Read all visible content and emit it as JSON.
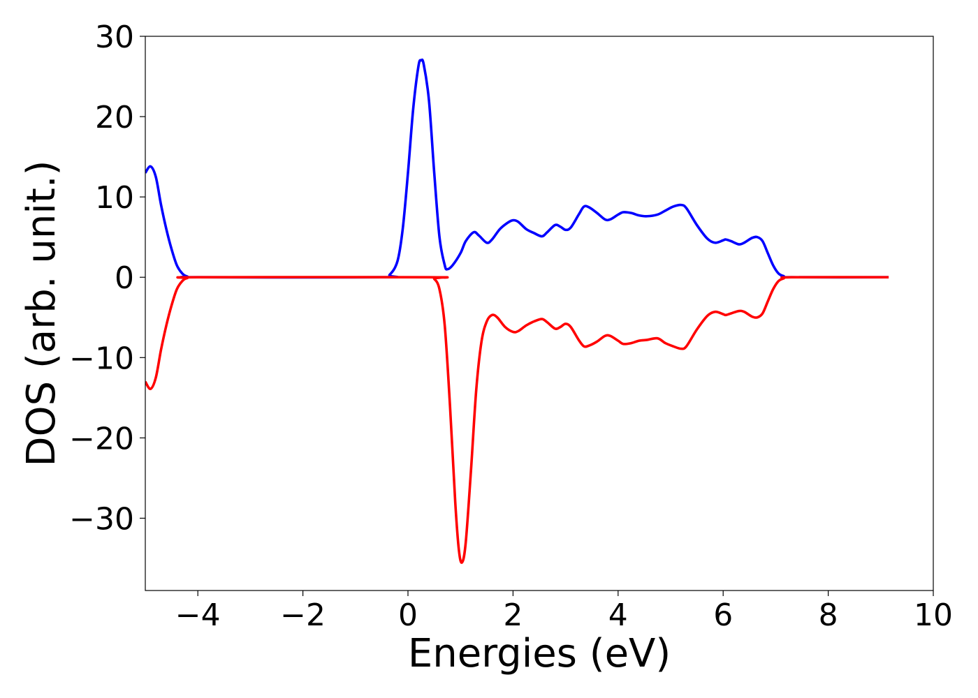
{
  "chart_data": {
    "type": "line",
    "xlabel": "Energies (eV)",
    "ylabel": "DOS (arb. unit.)",
    "xlim": [
      -5,
      10
    ],
    "ylim": [
      -39,
      30
    ],
    "xticks": [
      -4,
      -2,
      0,
      2,
      4,
      6,
      8,
      10
    ],
    "yticks": [
      -30,
      -20,
      -10,
      0,
      10,
      20,
      30
    ],
    "xtick_labels": [
      "−4",
      "−2",
      "0",
      "2",
      "4",
      "6",
      "8",
      "10"
    ],
    "ytick_labels": [
      "−30",
      "−20",
      "−10",
      "0",
      "10",
      "20",
      "30"
    ],
    "grid": false,
    "legend": "none",
    "series": [
      {
        "color": "#0000ff",
        "points": [
          [
            -5.0,
            13.0
          ],
          [
            -4.9,
            13.8
          ],
          [
            -4.8,
            12.5
          ],
          [
            -4.7,
            9.0
          ],
          [
            -4.6,
            6.0
          ],
          [
            -4.5,
            3.5
          ],
          [
            -4.4,
            1.5
          ],
          [
            -4.3,
            0.5
          ],
          [
            -4.2,
            0.1
          ],
          [
            -4.0,
            0.0
          ],
          [
            -0.5,
            0.0
          ],
          [
            -0.35,
            0.3
          ],
          [
            -0.2,
            2.0
          ],
          [
            -0.1,
            6.0
          ],
          [
            0.0,
            13.0
          ],
          [
            0.1,
            21.0
          ],
          [
            0.2,
            26.3
          ],
          [
            0.25,
            27.0
          ],
          [
            0.3,
            26.5
          ],
          [
            0.4,
            22.0
          ],
          [
            0.5,
            13.0
          ],
          [
            0.6,
            5.0
          ],
          [
            0.7,
            1.5
          ],
          [
            0.75,
            1.0
          ],
          [
            0.85,
            1.5
          ],
          [
            1.0,
            3.0
          ],
          [
            1.1,
            4.5
          ],
          [
            1.25,
            5.6
          ],
          [
            1.35,
            5.2
          ],
          [
            1.5,
            4.3
          ],
          [
            1.6,
            4.7
          ],
          [
            1.75,
            6.0
          ],
          [
            1.9,
            6.8
          ],
          [
            2.0,
            7.1
          ],
          [
            2.1,
            6.9
          ],
          [
            2.25,
            6.0
          ],
          [
            2.4,
            5.5
          ],
          [
            2.55,
            5.1
          ],
          [
            2.65,
            5.6
          ],
          [
            2.8,
            6.5
          ],
          [
            2.9,
            6.3
          ],
          [
            3.0,
            5.9
          ],
          [
            3.1,
            6.2
          ],
          [
            3.25,
            7.8
          ],
          [
            3.35,
            8.8
          ],
          [
            3.45,
            8.7
          ],
          [
            3.6,
            8.0
          ],
          [
            3.75,
            7.2
          ],
          [
            3.85,
            7.2
          ],
          [
            4.0,
            7.8
          ],
          [
            4.1,
            8.1
          ],
          [
            4.25,
            8.0
          ],
          [
            4.4,
            7.7
          ],
          [
            4.55,
            7.6
          ],
          [
            4.75,
            7.8
          ],
          [
            4.9,
            8.3
          ],
          [
            5.05,
            8.8
          ],
          [
            5.2,
            9.0
          ],
          [
            5.3,
            8.6
          ],
          [
            5.5,
            6.5
          ],
          [
            5.7,
            4.8
          ],
          [
            5.85,
            4.3
          ],
          [
            6.0,
            4.6
          ],
          [
            6.05,
            4.7
          ],
          [
            6.15,
            4.5
          ],
          [
            6.3,
            4.1
          ],
          [
            6.4,
            4.3
          ],
          [
            6.55,
            4.9
          ],
          [
            6.65,
            5.0
          ],
          [
            6.75,
            4.5
          ],
          [
            6.85,
            3.0
          ],
          [
            6.95,
            1.5
          ],
          [
            7.05,
            0.5
          ],
          [
            7.15,
            0.15
          ],
          [
            7.3,
            0.0
          ],
          [
            9.15,
            0.0
          ]
        ]
      },
      {
        "color": "#ff0000",
        "points": [
          [
            -5.0,
            -13.0
          ],
          [
            -4.9,
            -13.9
          ],
          [
            -4.8,
            -12.5
          ],
          [
            -4.7,
            -9.0
          ],
          [
            -4.6,
            -6.0
          ],
          [
            -4.5,
            -3.5
          ],
          [
            -4.4,
            -1.5
          ],
          [
            -4.3,
            -0.5
          ],
          [
            -4.2,
            -0.1
          ],
          [
            -4.0,
            0.0
          ],
          [
            0.4,
            0.0
          ],
          [
            0.5,
            -0.2
          ],
          [
            0.6,
            -1.5
          ],
          [
            0.7,
            -6.0
          ],
          [
            0.8,
            -16.0
          ],
          [
            0.9,
            -28.0
          ],
          [
            0.97,
            -34.0
          ],
          [
            1.03,
            -35.5
          ],
          [
            1.1,
            -33.0
          ],
          [
            1.2,
            -24.0
          ],
          [
            1.3,
            -14.0
          ],
          [
            1.4,
            -8.0
          ],
          [
            1.5,
            -5.5
          ],
          [
            1.6,
            -4.7
          ],
          [
            1.7,
            -5.0
          ],
          [
            1.85,
            -6.2
          ],
          [
            2.0,
            -6.8
          ],
          [
            2.1,
            -6.7
          ],
          [
            2.25,
            -6.0
          ],
          [
            2.4,
            -5.5
          ],
          [
            2.55,
            -5.2
          ],
          [
            2.65,
            -5.6
          ],
          [
            2.8,
            -6.4
          ],
          [
            2.9,
            -6.2
          ],
          [
            3.0,
            -5.8
          ],
          [
            3.1,
            -6.2
          ],
          [
            3.25,
            -7.8
          ],
          [
            3.35,
            -8.6
          ],
          [
            3.45,
            -8.5
          ],
          [
            3.6,
            -8.0
          ],
          [
            3.75,
            -7.3
          ],
          [
            3.85,
            -7.3
          ],
          [
            4.0,
            -7.9
          ],
          [
            4.1,
            -8.3
          ],
          [
            4.25,
            -8.2
          ],
          [
            4.4,
            -7.9
          ],
          [
            4.55,
            -7.8
          ],
          [
            4.75,
            -7.6
          ],
          [
            4.9,
            -8.2
          ],
          [
            5.05,
            -8.6
          ],
          [
            5.2,
            -8.9
          ],
          [
            5.3,
            -8.6
          ],
          [
            5.5,
            -6.5
          ],
          [
            5.7,
            -4.8
          ],
          [
            5.85,
            -4.3
          ],
          [
            6.0,
            -4.6
          ],
          [
            6.05,
            -4.7
          ],
          [
            6.15,
            -4.5
          ],
          [
            6.3,
            -4.2
          ],
          [
            6.4,
            -4.3
          ],
          [
            6.55,
            -4.9
          ],
          [
            6.65,
            -5.0
          ],
          [
            6.75,
            -4.5
          ],
          [
            6.85,
            -3.0
          ],
          [
            6.95,
            -1.5
          ],
          [
            7.05,
            -0.5
          ],
          [
            7.15,
            -0.15
          ],
          [
            7.3,
            0.0
          ],
          [
            9.15,
            0.0
          ]
        ]
      }
    ]
  }
}
